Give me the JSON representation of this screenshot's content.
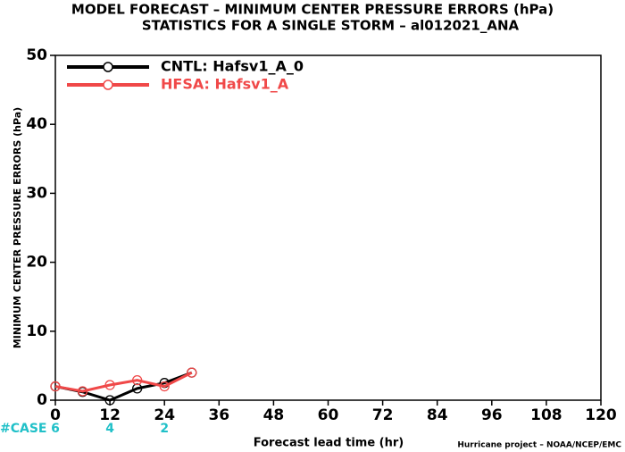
{
  "chart_data": {
    "type": "line",
    "title": "MODEL FORECAST – MINIMUM CENTER PRESSURE ERRORS (hPa)",
    "subtitle": "STATISTICS FOR A SINGLE STORM – al012021_ANA",
    "x_label": "Forecast lead time (hr)",
    "y_label": "MINIMUM CENTER PRESSURE ERRORS (hPa)",
    "footer": "Hurricane project – NOAA/NCEP/EMC",
    "x": [
      0,
      6,
      12,
      18,
      24,
      30
    ],
    "series": [
      {
        "name": "CNTL: Hafsv1_A_0",
        "color": "#000000",
        "values": [
          2.0,
          1.2,
          0.0,
          1.7,
          2.5,
          4.0
        ]
      },
      {
        "name": "HFSA: Hafsv1_A",
        "color": "#f04848",
        "values": [
          2.0,
          1.3,
          2.2,
          2.9,
          2.0,
          4.0
        ]
      }
    ],
    "case_counts": {
      "label": "#CASE",
      "x": [
        0,
        12,
        24
      ],
      "values": [
        6,
        4,
        2
      ],
      "color": "#20c0c8"
    },
    "xlim": [
      0,
      120
    ],
    "xticks": [
      0,
      12,
      24,
      36,
      48,
      60,
      72,
      84,
      96,
      108,
      120
    ],
    "ylim": [
      0,
      50
    ],
    "yticks": [
      0,
      10,
      20,
      30,
      40,
      50
    ],
    "legend": "top-left"
  }
}
